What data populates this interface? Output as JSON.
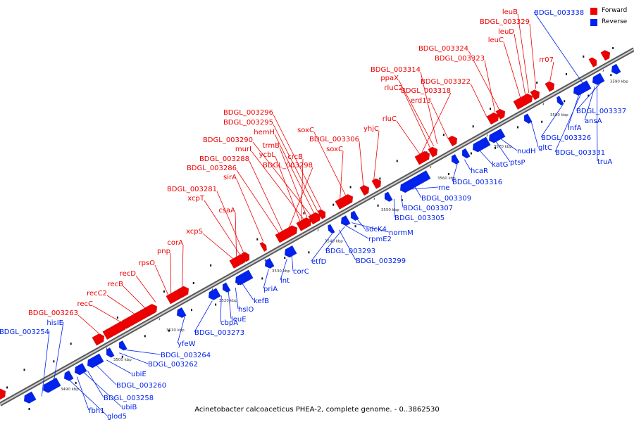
{
  "colors": {
    "forward": "#ee0000",
    "reverse": "#0022ee",
    "axis": "#7a7a7a"
  },
  "legend": {
    "forward": "Forward",
    "reverse": "Reverse"
  },
  "footer": "Acinetobacter calcoaceticus PHEA-2, complete genome. - 0..3862530",
  "ticks": [
    "3490 kbp",
    "3500 kbp",
    "3510 kbp",
    "3520 kbp",
    "3530 kbp",
    "3540 kbp",
    "3550 kbp",
    "3560 kbp",
    "3570 kbp",
    "3580 kbp",
    "3590 kbp"
  ],
  "forward_labels": [
    "leuB",
    "BDGL_003329",
    "leuD",
    "leuC",
    "rr07",
    "BDGL_003324",
    "BDGL_003323",
    "BDGL_003314",
    "ppaX",
    "rluC2",
    "BDGL_003318",
    "BDGL_003322",
    "erd13",
    "rluC",
    "yhjC",
    "BDGL_003306",
    "soxC",
    "soxC",
    "BDGL_003296",
    "BDGL_003295",
    "hemH",
    "BDGL_003290",
    "trmB",
    "murI",
    "ycbL",
    "crcB",
    "BDGL_003288",
    "BDGL_003298",
    "BDGL_003286",
    "sirA",
    "BDGL_003281",
    "xcpT",
    "csaA",
    "xcpS",
    "corA",
    "pnp",
    "rpsO",
    "recD",
    "recB",
    "recC2",
    "recC",
    "BDGL_003263"
  ],
  "reverse_labels": [
    "BDGL_003338",
    "BDGL_003337",
    "ansA",
    "infA",
    "BDGL_003326",
    "BDGL_003331",
    "truA",
    "gltC",
    "nudH",
    "ptsP",
    "katG",
    "hcaR",
    "BDGL_003316",
    "rne",
    "BDGL_003309",
    "BDGL_003307",
    "BDGL_003305",
    "adcK4",
    "normM",
    "rpmE2",
    "BDGL_003293",
    "BDGL_003299",
    "etfD",
    "corC",
    "lnt",
    "priA",
    "kefB",
    "hslO",
    "leuE",
    "cbpA",
    "BDGL_003273",
    "yfeW",
    "BDGL_003264",
    "BDGL_003262",
    "ubiE",
    "BDGL_003260",
    "BDGL_003258",
    "ubiB",
    "fbh1",
    "glod5",
    "hisIE",
    "BDGL_003254"
  ]
}
